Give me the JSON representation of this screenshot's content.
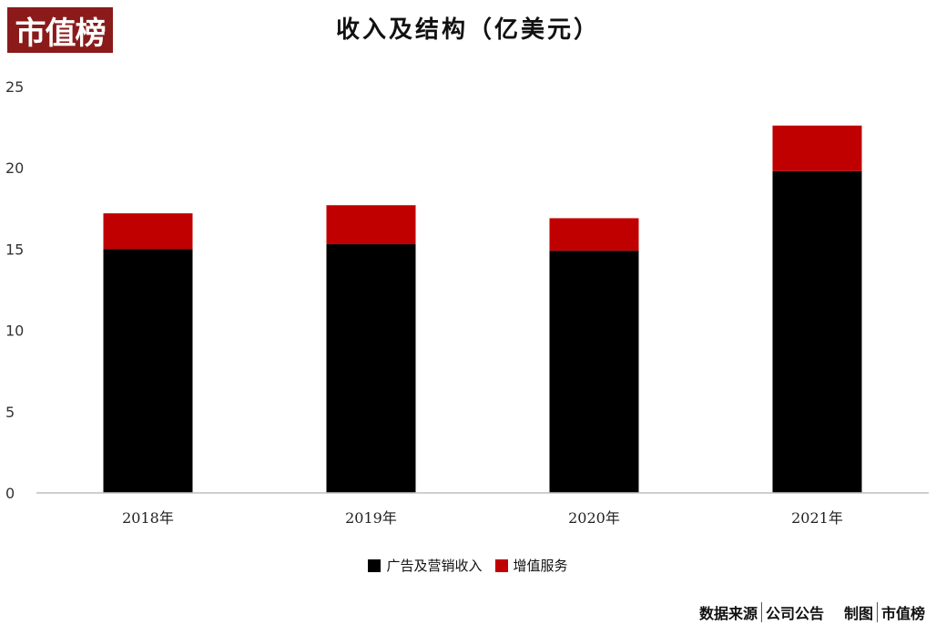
{
  "colors": {
    "logo_bg": "#8b1a1a",
    "ad": "#000000",
    "vas": "#c00000",
    "axis": "#bfbfbf"
  },
  "logo": {
    "text": "市值榜"
  },
  "footer": {
    "source_label": "数据来源",
    "source_value": "公司公告",
    "made_label": "制图",
    "made_value": "市值榜"
  },
  "chart_data": {
    "type": "bar",
    "stacked": true,
    "title": "收入及结构（亿美元）",
    "categories": [
      "2018年",
      "2019年",
      "2020年",
      "2021年"
    ],
    "series": [
      {
        "name": "广告及营销收入",
        "color": "#000000",
        "values": [
          15.0,
          15.3,
          14.9,
          19.8
        ]
      },
      {
        "name": "增值服务",
        "color": "#c00000",
        "values": [
          2.2,
          2.4,
          2.0,
          2.8
        ]
      }
    ],
    "ylim": [
      0,
      25
    ],
    "yticks": [
      "0",
      "5",
      "10",
      "15",
      "20",
      "25"
    ],
    "xlabel": "",
    "ylabel": "",
    "grid": false,
    "legend_position": "bottom"
  }
}
